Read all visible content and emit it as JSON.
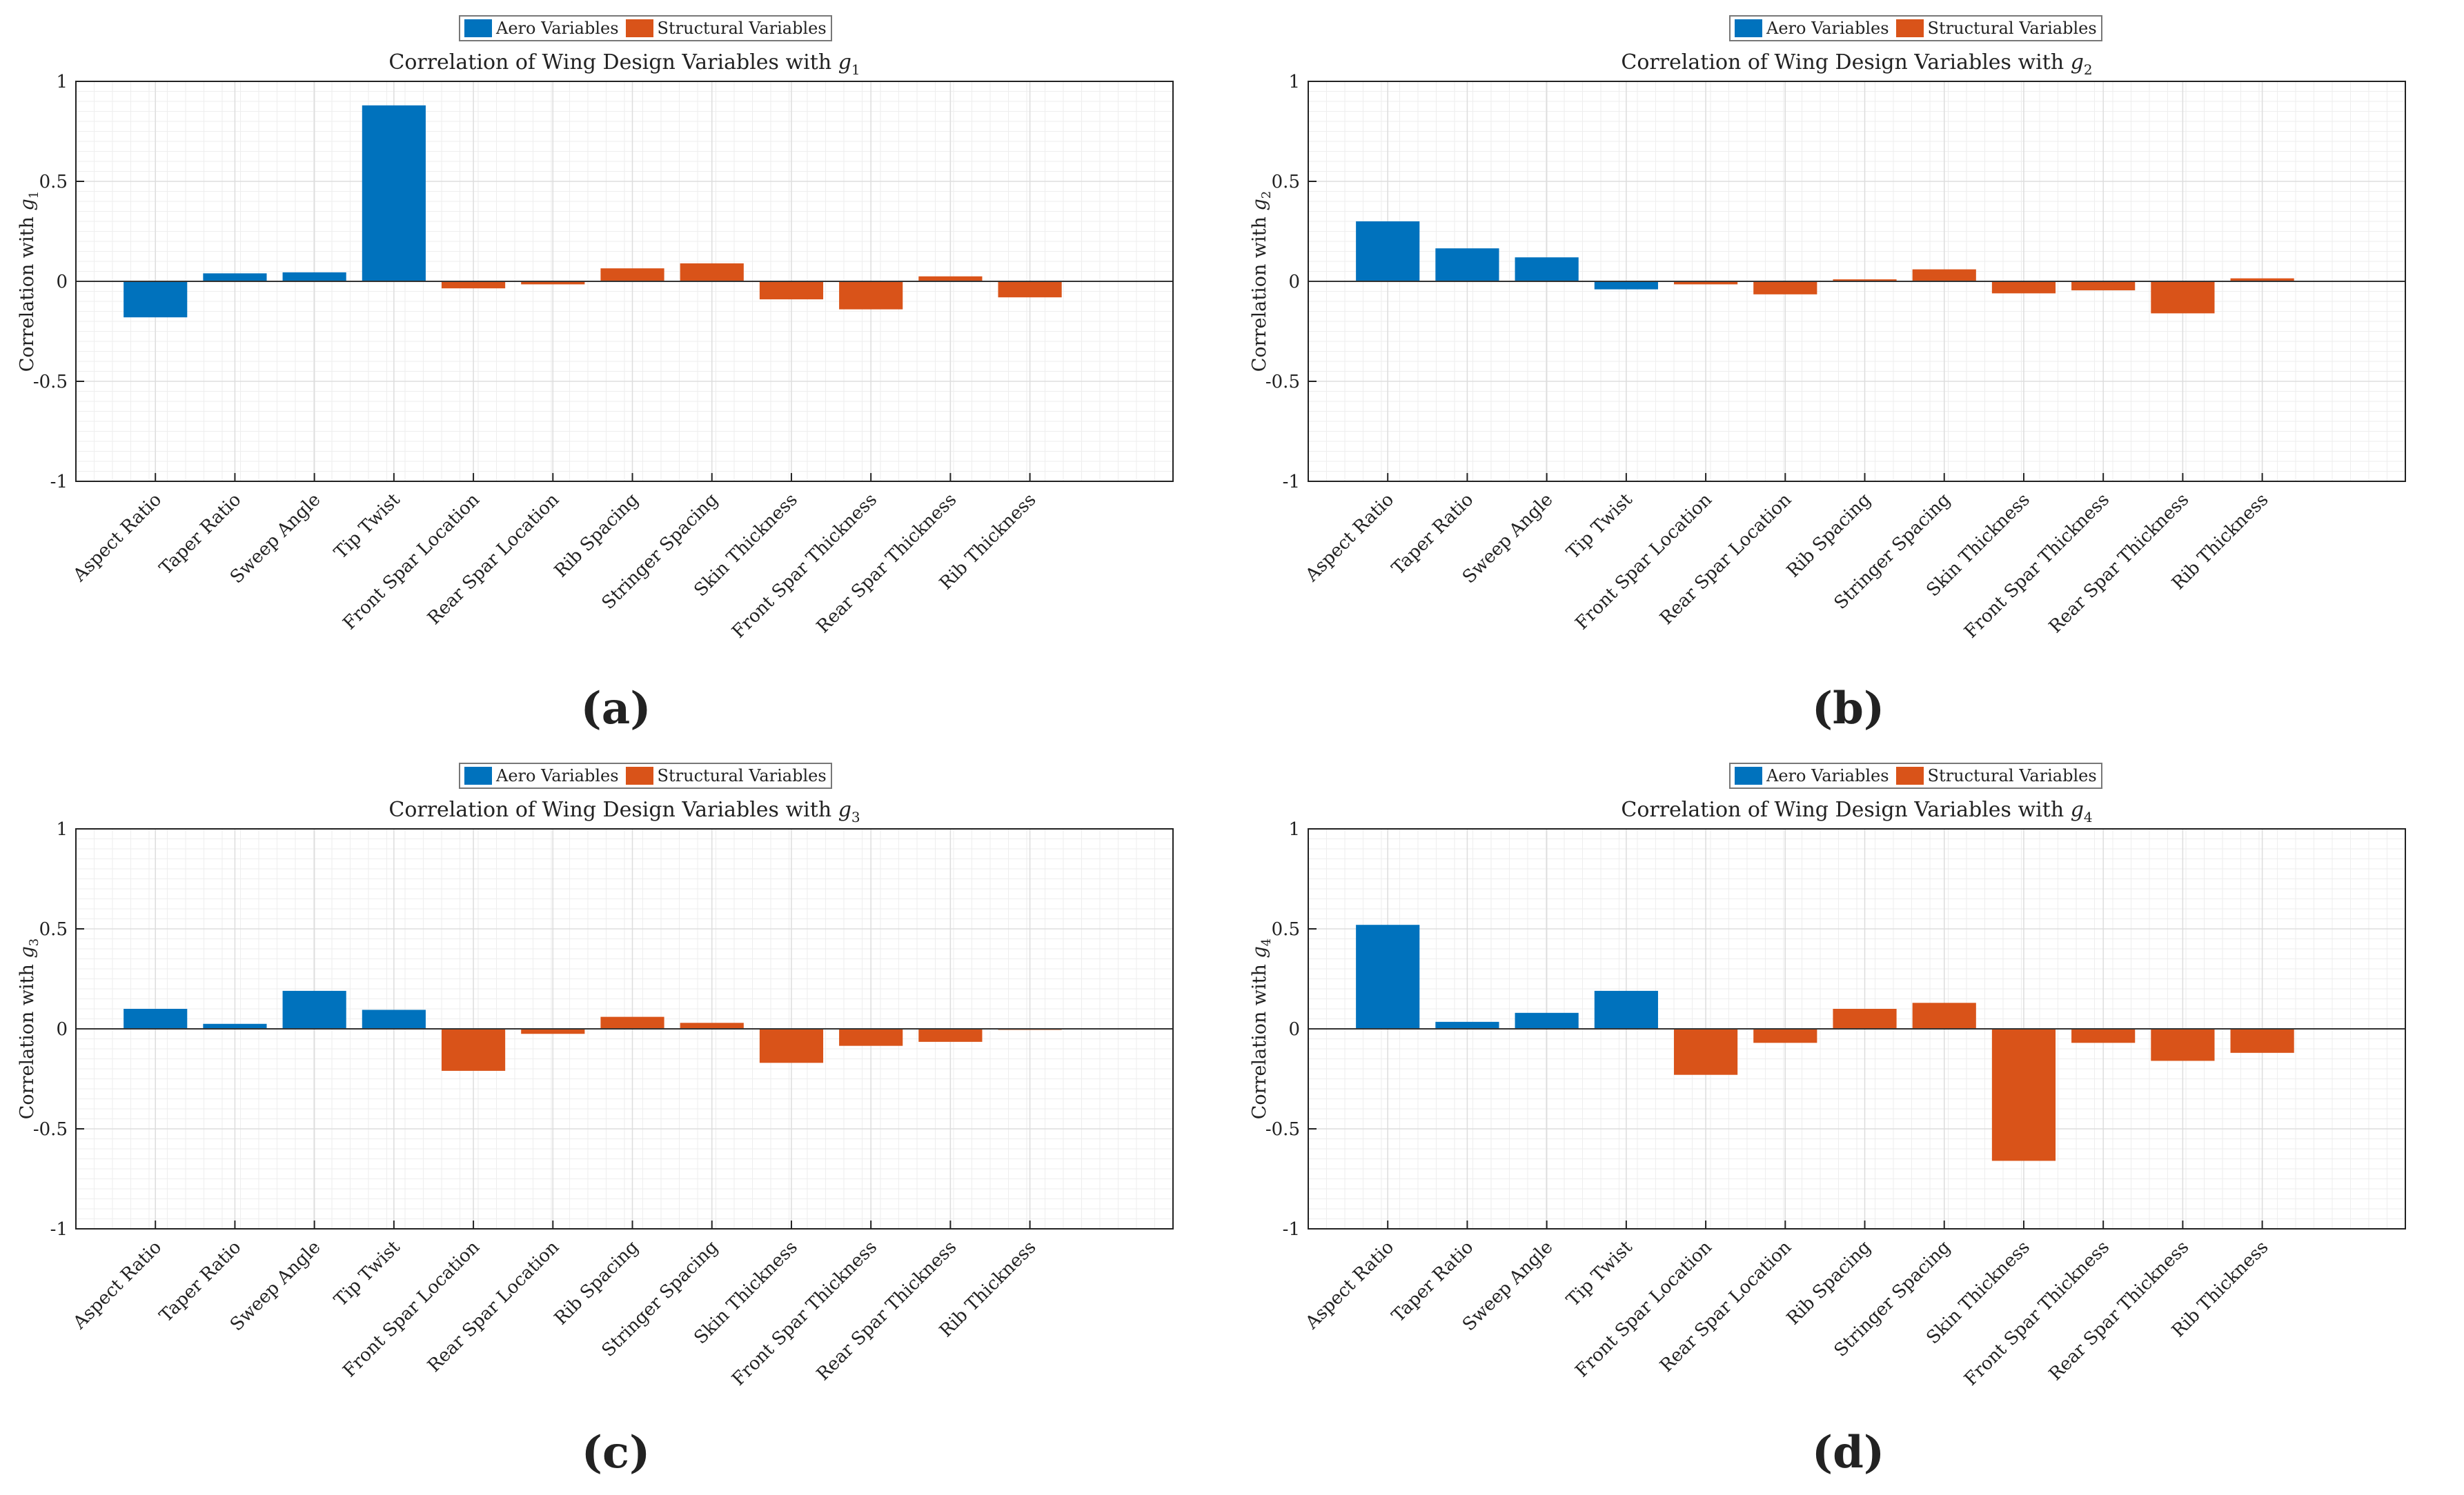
{
  "legend": {
    "aero_label": "Aero Variables",
    "struct_label": "Structural Variables",
    "aero_color": "#0072BD",
    "struct_color": "#D95319"
  },
  "chart_data": [
    {
      "type": "bar",
      "panel_label": "(a)",
      "title_prefix": "Correlation of Wing Design Variables with ",
      "ylabel_prefix": "Correlation with ",
      "var_symbol": "g",
      "var_sub": "1",
      "categories": [
        "Aspect Ratio",
        "Taper Ratio",
        "Sweep Angle",
        "Tip Twist",
        "Front Spar Location",
        "Rear Spar Location",
        "Rib Spacing",
        "Stringer Spacing",
        "Skin Thickness",
        "Front Spar Thickness",
        "Rear Spar Thickness",
        "Rib Thickness"
      ],
      "groups": [
        "aero",
        "aero",
        "aero",
        "aero",
        "struct",
        "struct",
        "struct",
        "struct",
        "struct",
        "struct",
        "struct",
        "struct"
      ],
      "values": [
        -0.18,
        0.04,
        0.045,
        0.88,
        -0.035,
        -0.015,
        0.065,
        0.09,
        -0.09,
        -0.14,
        0.025,
        -0.08
      ],
      "ylim": [
        -1,
        1
      ],
      "yticks": [
        "-1",
        "-0.5",
        "0",
        "0.5",
        "1"
      ],
      "grid": true
    },
    {
      "type": "bar",
      "panel_label": "(b)",
      "title_prefix": "Correlation of Wing Design Variables with ",
      "ylabel_prefix": "Correlation with ",
      "var_symbol": "g",
      "var_sub": "2",
      "categories": [
        "Aspect Ratio",
        "Taper Ratio",
        "Sweep Angle",
        "Tip Twist",
        "Front Spar Location",
        "Rear Spar Location",
        "Rib Spacing",
        "Stringer Spacing",
        "Skin Thickness",
        "Front Spar Thickness",
        "Rear Spar Thickness",
        "Rib Thickness"
      ],
      "groups": [
        "aero",
        "aero",
        "aero",
        "aero",
        "struct",
        "struct",
        "struct",
        "struct",
        "struct",
        "struct",
        "struct",
        "struct"
      ],
      "values": [
        0.3,
        0.165,
        0.12,
        -0.04,
        -0.015,
        -0.065,
        0.01,
        0.06,
        -0.06,
        -0.045,
        -0.16,
        0.015
      ],
      "ylim": [
        -1,
        1
      ],
      "yticks": [
        "-1",
        "-0.5",
        "0",
        "0.5",
        "1"
      ],
      "grid": true
    },
    {
      "type": "bar",
      "panel_label": "(c)",
      "title_prefix": "Correlation of Wing Design Variables with ",
      "ylabel_prefix": "Correlation with ",
      "var_symbol": "g",
      "var_sub": "3",
      "categories": [
        "Aspect Ratio",
        "Taper Ratio",
        "Sweep Angle",
        "Tip Twist",
        "Front Spar Location",
        "Rear Spar Location",
        "Rib Spacing",
        "Stringer Spacing",
        "Skin Thickness",
        "Front Spar Thickness",
        "Rear Spar Thickness",
        "Rib Thickness"
      ],
      "groups": [
        "aero",
        "aero",
        "aero",
        "aero",
        "struct",
        "struct",
        "struct",
        "struct",
        "struct",
        "struct",
        "struct",
        "struct"
      ],
      "values": [
        0.1,
        0.025,
        0.19,
        0.095,
        -0.21,
        -0.025,
        0.06,
        0.03,
        -0.17,
        -0.085,
        -0.065,
        -0.005
      ],
      "ylim": [
        -1,
        1
      ],
      "yticks": [
        "-1",
        "-0.5",
        "0",
        "0.5",
        "1"
      ],
      "grid": true
    },
    {
      "type": "bar",
      "panel_label": "(d)",
      "title_prefix": "Correlation of Wing Design Variables with ",
      "ylabel_prefix": "Correlation with ",
      "var_symbol": "g",
      "var_sub": "4",
      "categories": [
        "Aspect Ratio",
        "Taper Ratio",
        "Sweep Angle",
        "Tip Twist",
        "Front Spar Location",
        "Rear Spar Location",
        "Rib Spacing",
        "Stringer Spacing",
        "Skin Thickness",
        "Front Spar Thickness",
        "Rear Spar Thickness",
        "Rib Thickness"
      ],
      "groups": [
        "aero",
        "aero",
        "aero",
        "aero",
        "struct",
        "struct",
        "struct",
        "struct",
        "struct",
        "struct",
        "struct",
        "struct"
      ],
      "values": [
        0.52,
        0.035,
        0.08,
        0.19,
        -0.23,
        -0.07,
        0.1,
        0.13,
        -0.66,
        -0.07,
        -0.16,
        -0.12
      ],
      "ylim": [
        -1,
        1
      ],
      "yticks": [
        "-1",
        "-0.5",
        "0",
        "0.5",
        "1"
      ],
      "grid": true
    }
  ]
}
